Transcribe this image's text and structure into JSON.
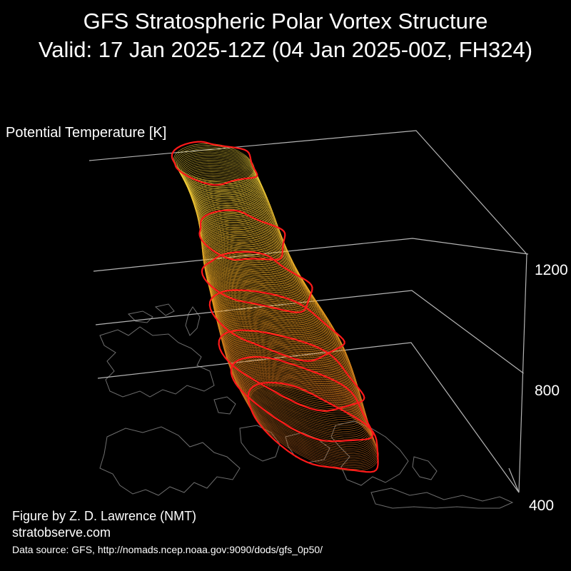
{
  "title": {
    "line1": "GFS Stratospheric Polar Vortex Structure",
    "line2": "Valid: 17 Jan 2025-12Z  (04 Jan 2025-00Z, FH324)"
  },
  "credits": {
    "author": "Figure by Z. D. Lawrence (NMT)",
    "site": "stratobserve.com",
    "source": "Data source: GFS, http://nomads.ncep.noaa.gov:9090/dods/gfs_0p50/"
  },
  "colors": {
    "background": "#000000",
    "text": "#ffffff",
    "axis_lines": "#b4b4b4",
    "coastlines": "#6e6e6e",
    "highlight_contour": "#ff1a1a",
    "surface_low": "#c9661e",
    "surface_mid": "#f0a020",
    "surface_high": "#ffe040"
  },
  "chart_data": {
    "type": "3d-isosurface",
    "zlabel": "Potential Temperature [K]",
    "z_ticks": [
      {
        "value": 400,
        "label": "400"
      },
      {
        "value": 800,
        "label": "800"
      },
      {
        "value": 1200,
        "label": "1200"
      }
    ],
    "zlim": [
      400,
      1400
    ],
    "highlight_levels": [
      500,
      600,
      700,
      850,
      1000,
      1150,
      1400
    ],
    "grid": true
  }
}
